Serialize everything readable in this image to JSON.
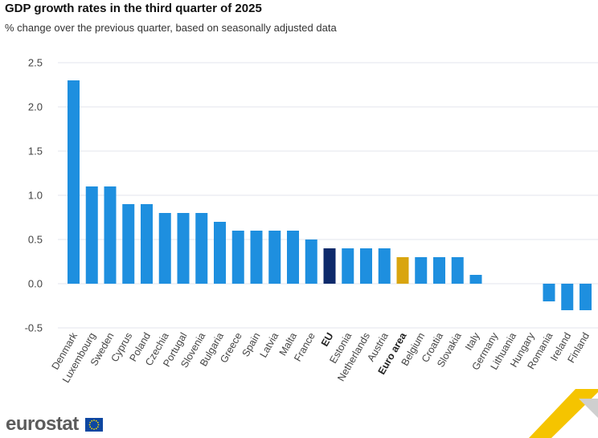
{
  "chart_data": {
    "type": "bar",
    "title": "GDP growth rates in the third quarter of 2025",
    "subtitle": "% change over the previous quarter, based on seasonally adjusted data",
    "xlabel": "",
    "ylabel": "",
    "ylim": [
      -0.5,
      2.5
    ],
    "yticks": [
      "2.5",
      "2.0",
      "1.5",
      "1.0",
      "0.5",
      "0.0",
      "-0.5"
    ],
    "ytick_values": [
      2.5,
      2.0,
      1.5,
      1.0,
      0.5,
      0.0,
      -0.5
    ],
    "grid": true,
    "categories": [
      "Denmark",
      "Luxembourg",
      "Sweden",
      "Cyprus",
      "Poland",
      "Czechia",
      "Portugal",
      "Slovenia",
      "Bulgaria",
      "Greece",
      "Spain",
      "Latvia",
      "Malta",
      "France",
      "EU",
      "Estonia",
      "Netherlands",
      "Austria",
      "Euro area",
      "Belgium",
      "Croatia",
      "Slovakia",
      "Italy",
      "Germany",
      "Lithuania",
      "Hungary",
      "Romania",
      "Ireland",
      "Finland"
    ],
    "values": [
      2.3,
      1.1,
      1.1,
      0.9,
      0.9,
      0.8,
      0.8,
      0.8,
      0.7,
      0.6,
      0.6,
      0.6,
      0.6,
      0.5,
      0.4,
      0.4,
      0.4,
      0.4,
      0.3,
      0.3,
      0.3,
      0.3,
      0.1,
      0.0,
      0.0,
      0.0,
      -0.2,
      -0.3,
      -0.3
    ],
    "highlight": {
      "EU": "#0e2a6b",
      "Euro area": "#d9a50f"
    },
    "bold_labels": [
      "EU",
      "Euro area"
    ]
  },
  "colors": {
    "bar": "#1e8fdf",
    "eu": "#0e2a6b",
    "euro_area": "#d9a50f",
    "grid": "#e3e6ec",
    "logo_text": "#5c5c5c",
    "flag": "#0e47a1",
    "star": "#ffdd00",
    "deco_yellow": "#f5c400",
    "deco_grey": "#cfcfcf"
  },
  "branding": {
    "logo_text": "eurostat",
    "flag_icon": "eu-flag-icon"
  }
}
